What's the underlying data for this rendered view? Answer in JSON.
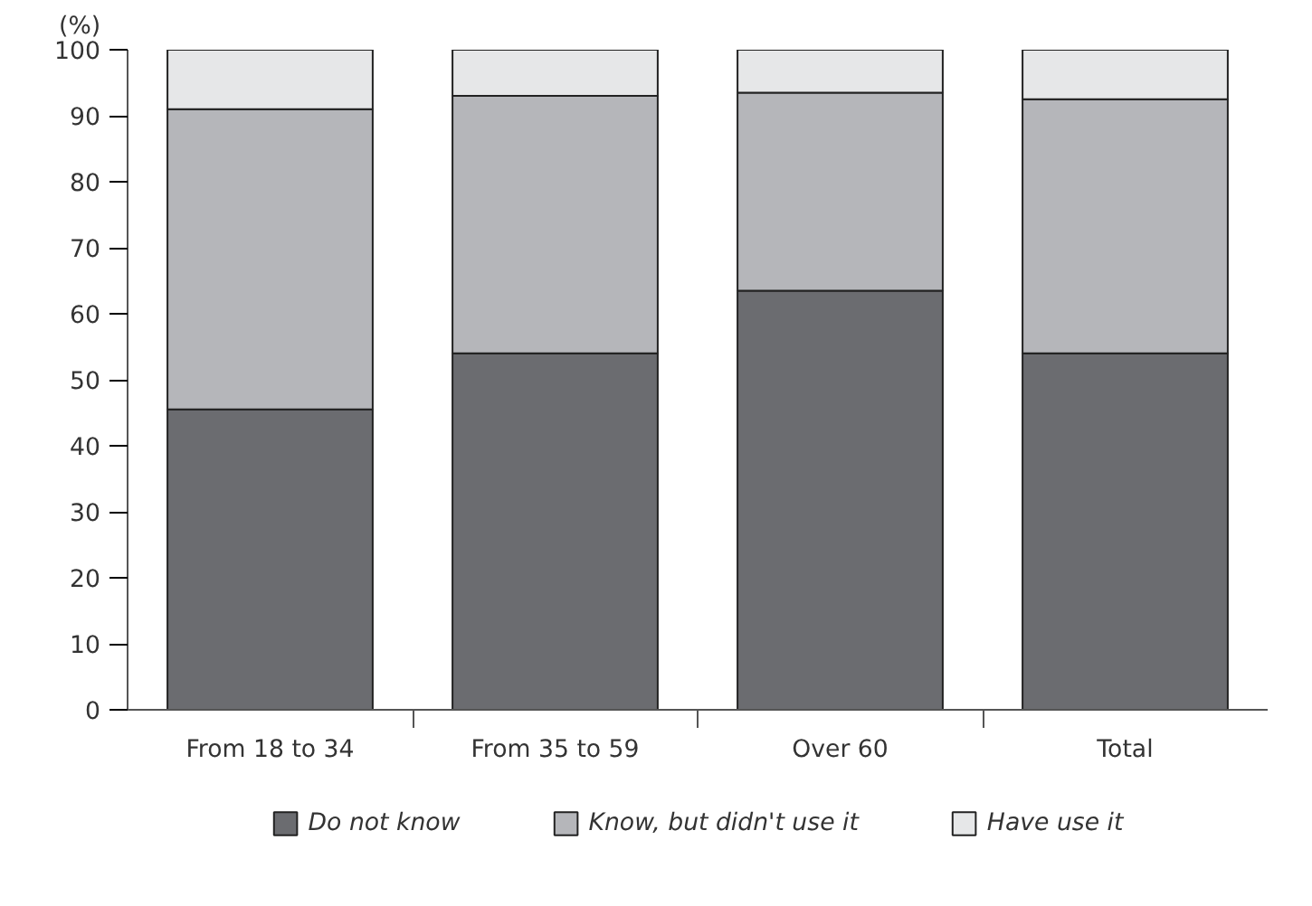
{
  "chart_data": {
    "type": "bar",
    "stacked": true,
    "ylabel": "(%)",
    "categories": [
      "From 18 to 34",
      "From 35 to 59",
      "Over 60",
      "Total"
    ],
    "series": [
      {
        "name": "Do not know",
        "color": "#6b6c70",
        "values": [
          45.5,
          54,
          63.5,
          54
        ]
      },
      {
        "name": "Know, but didn't use it",
        "color": "#b5b6ba",
        "values": [
          45.5,
          39,
          30,
          38.5
        ]
      },
      {
        "name": "Have use it",
        "color": "#e6e7e8",
        "values": [
          9,
          7,
          6.5,
          7.5
        ]
      }
    ],
    "ylim": [
      0,
      100
    ],
    "yticks": [
      0,
      10,
      20,
      30,
      40,
      50,
      60,
      70,
      80,
      90,
      100
    ],
    "grid": false,
    "legend": "bottom"
  }
}
